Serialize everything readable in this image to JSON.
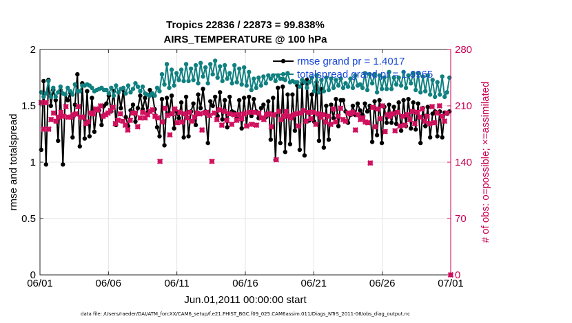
{
  "chart_data": {
    "type": "line",
    "title": "Tropics 22836 / 22873 = 99.838%",
    "subtitle": "AIRS_TEMPERATURE @ 100 hPa",
    "xlabel": "Jun.01,2011 00:00:00 start",
    "ylabel": "rmse and totalspread",
    "ylabel_right": "# of obs: o=possible; ×=assimilated",
    "footer": "data file: /Users/raeder/DAI/ATM_forcXX/CAM6_setup/f.e21.FHIST_BGC.f09_025.CAM6assim.011/Diags_NTrS_2011-06/obs_diag_output.nc",
    "xlim": [
      0,
      30
    ],
    "ylim": [
      0,
      2
    ],
    "ylim_right": [
      0,
      280
    ],
    "x_ticks": [
      0,
      5,
      10,
      15,
      20,
      25,
      30
    ],
    "x_tick_labels": [
      "06/01",
      "06/06",
      "06/11",
      "06/16",
      "06/21",
      "06/26",
      "07/01"
    ],
    "y_ticks": [
      0,
      0.5,
      1,
      1.5,
      2
    ],
    "y_tick_labels": [
      "0",
      "0.5",
      "1",
      "1.5",
      "2"
    ],
    "y_ticks_right": [
      0,
      70,
      140,
      210,
      280
    ],
    "y_tick_labels_right": [
      "0",
      "70",
      "140",
      "210",
      "280"
    ],
    "grid": true,
    "legend_position": "top-right",
    "series": [
      {
        "name": "rmse grand pr = 1.4017",
        "color": "#000000",
        "marker": "filled-circle",
        "values": [
          1.11,
          1.72,
          0.98,
          1.73,
          1.5,
          1.64,
          1.55,
          1.19,
          1.64,
          0.98,
          1.6,
          1.55,
          1.62,
          1.22,
          1.51,
          1.78,
          1.14,
          1.7,
          1.21,
          1.63,
          1.23,
          1.57,
          1.27,
          1.46,
          1.46,
          1.33,
          1.5,
          1.52,
          1.59,
          1.45,
          1.63,
          1.33,
          1.62,
          1.48,
          1.64,
          1.4,
          1.32,
          1.46,
          1.51,
          1.36,
          1.48,
          1.59,
          1.47,
          1.57,
          1.44,
          1.64,
          1.61,
          1.47,
          1.31,
          1.23,
          1.56,
          1.15,
          1.57,
          1.44,
          1.59,
          1.3,
          1.45,
          1.39,
          1.53,
          1.22,
          1.58,
          1.23,
          1.45,
          1.52,
          1.33,
          1.6,
          1.48,
          1.65,
          1.45,
          1.17,
          1.54,
          1.5,
          1.58,
          1.41,
          1.62,
          1.38,
          1.55,
          1.31,
          1.58,
          1.45,
          1.44,
          1.4,
          1.55,
          1.3,
          1.57,
          1.32,
          1.58,
          1.41,
          1.56,
          1.45,
          1.39,
          1.48,
          1.51,
          1.4,
          1.54,
          1.2,
          1.57,
          1.02,
          1.66,
          1.17,
          1.67,
          1.09,
          1.6,
          1.16,
          1.6,
          1.28,
          1.68,
          1.11,
          1.7,
          1.06,
          1.73,
          1.37,
          1.6,
          1.36,
          1.71,
          1.19,
          1.65,
          1.13,
          1.5,
          1.2,
          1.51,
          1.39,
          1.56,
          1.32,
          1.55,
          1.55,
          1.45,
          1.35,
          1.42,
          1.5,
          1.42,
          1.52,
          1.46,
          1.42,
          1.52,
          1.45,
          1.5,
          1.18,
          1.54,
          1.24,
          1.55,
          1.17,
          1.49,
          1.35,
          1.51,
          1.35,
          1.49,
          1.34,
          1.53,
          1.28,
          1.55,
          1.32,
          1.56,
          1.3,
          1.53,
          1.29,
          1.52,
          1.17,
          1.48,
          1.32,
          1.49,
          1.22,
          1.43,
          1.45,
          1.23,
          1.45,
          1.22,
          1.44,
          1.43,
          1.45
        ]
      },
      {
        "name": "totalspread grand pr = 1.6965",
        "color": "#108080",
        "marker": "filled-circle",
        "values": [
          1.62,
          1.58,
          1.61,
          1.72,
          1.58,
          1.66,
          1.58,
          1.62,
          1.67,
          1.61,
          1.6,
          1.66,
          1.63,
          1.6,
          1.69,
          1.63,
          1.63,
          1.68,
          1.68,
          1.69,
          1.68,
          1.66,
          1.63,
          1.64,
          1.65,
          1.66,
          1.64,
          1.64,
          1.61,
          1.66,
          1.59,
          1.68,
          1.62,
          1.65,
          1.66,
          1.61,
          1.68,
          1.62,
          1.65,
          1.7,
          1.67,
          1.63,
          1.67,
          1.61,
          1.6,
          1.59,
          1.61,
          1.59,
          1.66,
          1.63,
          1.78,
          1.69,
          1.87,
          1.66,
          1.82,
          1.68,
          1.79,
          1.73,
          1.82,
          1.72,
          1.87,
          1.72,
          1.83,
          1.73,
          1.86,
          1.7,
          1.88,
          1.76,
          1.84,
          1.7,
          1.87,
          1.78,
          1.9,
          1.75,
          1.85,
          1.72,
          1.86,
          1.74,
          1.79,
          1.7,
          1.86,
          1.71,
          1.83,
          1.69,
          1.84,
          1.68,
          1.8,
          1.64,
          1.74,
          1.66,
          1.75,
          1.68,
          1.76,
          1.7,
          1.77,
          1.74,
          1.77,
          1.72,
          1.77,
          1.74,
          1.74,
          1.73,
          1.79,
          1.71,
          1.72,
          1.71,
          1.71,
          1.67,
          1.73,
          1.71,
          1.66,
          1.71,
          1.75,
          1.63,
          1.77,
          1.62,
          1.73,
          1.63,
          1.75,
          1.64,
          1.74,
          1.66,
          1.73,
          1.68,
          1.74,
          1.66,
          1.7,
          1.67,
          1.74,
          1.66,
          1.77,
          1.68,
          1.69,
          1.66,
          1.79,
          1.64,
          1.78,
          1.7,
          1.78,
          1.62,
          1.77,
          1.65,
          1.75,
          1.65,
          1.8,
          1.65,
          1.75,
          1.69,
          1.75,
          1.68,
          1.8,
          1.66,
          1.77,
          1.7,
          1.79,
          1.64,
          1.79,
          1.62,
          1.76,
          1.63,
          1.77,
          1.6,
          1.73,
          1.58,
          1.71,
          1.6,
          1.76,
          1.58,
          1.62,
          1.75
        ]
      }
    ],
    "obs_possible": {
      "name": "# obs possible",
      "color": "#d0115e",
      "marker": "filled-circle",
      "values": [
        214,
        181,
        214,
        181,
        193,
        201,
        191,
        196,
        202,
        197,
        209,
        196,
        196,
        199,
        200,
        209,
        196,
        196,
        188,
        190,
        201,
        200,
        206,
        205,
        210,
        197,
        199,
        201,
        204,
        208,
        188,
        192,
        200,
        191,
        186,
        180,
        192,
        201,
        201,
        184,
        195,
        202,
        195,
        199,
        203,
        205,
        197,
        195,
        141,
        190,
        207,
        198,
        174,
        200,
        206,
        189,
        202,
        190,
        200,
        195,
        202,
        191,
        196,
        201,
        200,
        180,
        201,
        202,
        198,
        141,
        201,
        193,
        205,
        186,
        203,
        192,
        200,
        187,
        199,
        192,
        199,
        194,
        200,
        185,
        202,
        187,
        202,
        186,
        201,
        195,
        193,
        199,
        200,
        184,
        199,
        143,
        203,
        193,
        197,
        203,
        197,
        195,
        199,
        200,
        185,
        201,
        204,
        191,
        202,
        194,
        202,
        187,
        200,
        196,
        199,
        190,
        197,
        187,
        206,
        190,
        197,
        207,
        193,
        191,
        201,
        200,
        202,
        180,
        199,
        193,
        195,
        190,
        189,
        139,
        208,
        184,
        206,
        194,
        210,
        178,
        199,
        197,
        200,
        179,
        202,
        185,
        197,
        186,
        199,
        193,
        203,
        188,
        202,
        196,
        206,
        191,
        197,
        188,
        209,
        189,
        201,
        210,
        197,
        191,
        201,
        0
      ]
    },
    "obs_assimilated": {
      "name": "# obs assimilated",
      "color": "#d0115e",
      "marker": "x",
      "values": [
        214,
        181,
        214,
        181,
        193,
        201,
        191,
        196,
        202,
        197,
        209,
        196,
        196,
        199,
        200,
        209,
        196,
        196,
        188,
        190,
        201,
        200,
        206,
        205,
        210,
        197,
        199,
        201,
        204,
        208,
        188,
        192,
        200,
        191,
        186,
        180,
        192,
        201,
        201,
        184,
        195,
        202,
        195,
        199,
        203,
        205,
        197,
        195,
        141,
        190,
        207,
        198,
        174,
        200,
        206,
        189,
        202,
        190,
        200,
        195,
        202,
        191,
        196,
        201,
        200,
        180,
        201,
        202,
        198,
        141,
        201,
        193,
        205,
        186,
        203,
        192,
        200,
        187,
        199,
        192,
        199,
        194,
        200,
        185,
        202,
        187,
        202,
        186,
        201,
        195,
        193,
        199,
        200,
        184,
        199,
        143,
        203,
        193,
        197,
        203,
        197,
        195,
        199,
        200,
        185,
        201,
        204,
        191,
        202,
        194,
        202,
        187,
        200,
        196,
        199,
        190,
        197,
        187,
        206,
        190,
        197,
        207,
        193,
        191,
        201,
        200,
        202,
        180,
        199,
        193,
        195,
        190,
        189,
        139,
        208,
        184,
        206,
        194,
        210,
        178,
        199,
        197,
        200,
        179,
        202,
        185,
        197,
        186,
        199,
        193,
        203,
        188,
        202,
        196,
        206,
        191,
        197,
        188,
        209,
        189,
        201,
        210,
        197,
        191,
        201,
        0
      ]
    }
  }
}
